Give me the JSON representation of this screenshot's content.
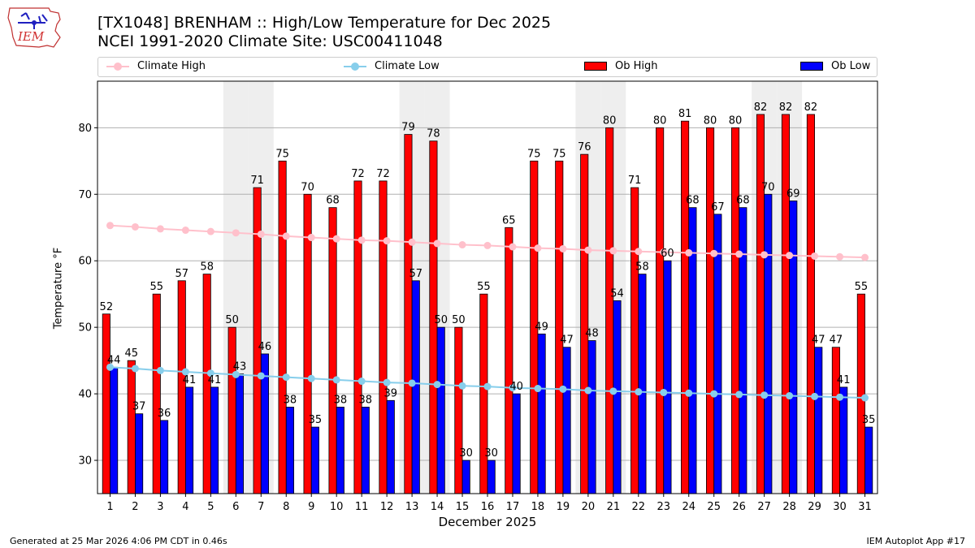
{
  "header": {
    "title_line1": "[TX1048] BRENHAM :: High/Low Temperature for Dec 2025",
    "title_line2": "NCEI 1991-2020 Climate Site: USC00411048",
    "logo_text": "IEM"
  },
  "legend": {
    "items": [
      {
        "label": "Climate High",
        "kind": "line",
        "color": "#ffc0cb"
      },
      {
        "label": "Climate Low",
        "kind": "line",
        "color": "#87ceeb"
      },
      {
        "label": "Ob High",
        "kind": "bar",
        "color": "#ff0000"
      },
      {
        "label": "Ob Low",
        "kind": "bar",
        "color": "#0000ff"
      }
    ]
  },
  "footer": {
    "generated": "Generated at 25 Mar 2026 4:06 PM CDT in 0.46s",
    "app": "IEM Autoplot App #17"
  },
  "chart_data": {
    "type": "bar",
    "xlabel": "December 2025",
    "ylabel": "Temperature °F",
    "ylim": [
      25,
      87
    ],
    "yticks": [
      30,
      40,
      50,
      60,
      70,
      80
    ],
    "grid": "horizontal",
    "categories": [
      "1",
      "2",
      "3",
      "4",
      "5",
      "6",
      "7",
      "8",
      "9",
      "10",
      "11",
      "12",
      "13",
      "14",
      "15",
      "16",
      "17",
      "18",
      "19",
      "20",
      "21",
      "22",
      "23",
      "24",
      "25",
      "26",
      "27",
      "28",
      "29",
      "30",
      "31"
    ],
    "weekend_shaded_days": [
      6,
      7,
      13,
      14,
      20,
      21,
      27,
      28
    ],
    "series": [
      {
        "name": "Ob High",
        "kind": "bar",
        "color": "#ff0000",
        "values": [
          52,
          45,
          55,
          57,
          58,
          50,
          71,
          75,
          70,
          68,
          72,
          72,
          79,
          78,
          50,
          55,
          65,
          75,
          75,
          76,
          80,
          71,
          80,
          81,
          80,
          80,
          82,
          82,
          82,
          47,
          55
        ]
      },
      {
        "name": "Ob Low",
        "kind": "bar",
        "color": "#0000ff",
        "values": [
          44,
          37,
          36,
          41,
          41,
          43,
          46,
          38,
          35,
          38,
          38,
          39,
          57,
          50,
          30,
          30,
          40,
          49,
          47,
          48,
          54,
          58,
          60,
          68,
          67,
          68,
          70,
          69,
          47,
          41,
          35
        ]
      },
      {
        "name": "Climate High",
        "kind": "line",
        "color": "#ffc0cb",
        "values": [
          65.3,
          65.1,
          64.8,
          64.6,
          64.4,
          64.2,
          64.0,
          63.7,
          63.5,
          63.3,
          63.1,
          63.0,
          62.8,
          62.6,
          62.4,
          62.3,
          62.1,
          61.9,
          61.8,
          61.6,
          61.5,
          61.4,
          61.3,
          61.2,
          61.1,
          61.0,
          60.9,
          60.8,
          60.7,
          60.6,
          60.5
        ]
      },
      {
        "name": "Climate Low",
        "kind": "line",
        "color": "#87ceeb",
        "values": [
          44.0,
          43.8,
          43.5,
          43.3,
          43.1,
          42.9,
          42.7,
          42.5,
          42.3,
          42.1,
          41.9,
          41.7,
          41.6,
          41.4,
          41.2,
          41.1,
          40.9,
          40.8,
          40.7,
          40.5,
          40.4,
          40.3,
          40.2,
          40.1,
          40.0,
          39.9,
          39.8,
          39.7,
          39.6,
          39.5,
          39.4
        ]
      }
    ]
  }
}
